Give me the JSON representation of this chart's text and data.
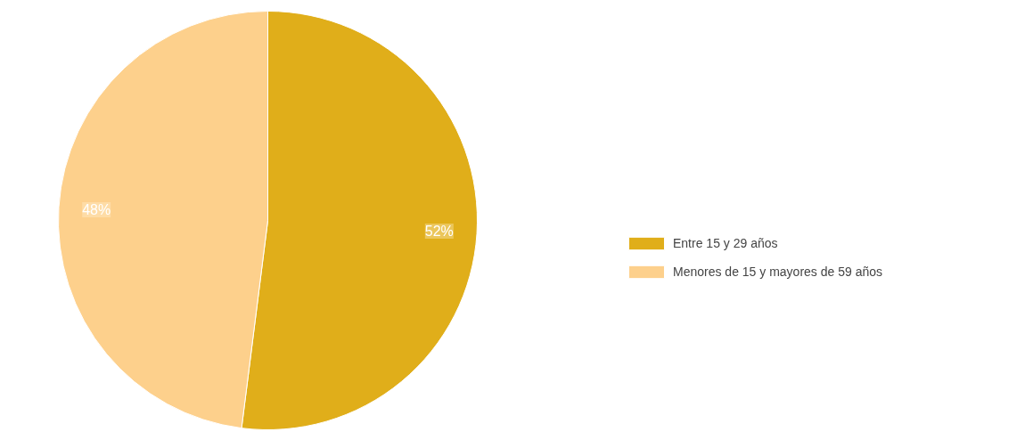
{
  "chart_data": {
    "type": "pie",
    "categories": [
      "Entre 15 y 29 años",
      "Menores de 15 y mayores de 59 años"
    ],
    "values": [
      52,
      48
    ],
    "colors": [
      "#e0ae1a",
      "#fdd08c"
    ],
    "value_labels": [
      "52%",
      "48%"
    ],
    "legend": "right"
  }
}
